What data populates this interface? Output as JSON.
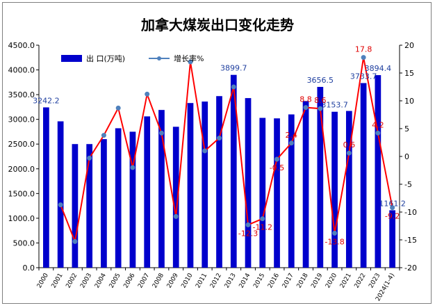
{
  "chart_data": {
    "type": "bar",
    "title": "加拿大煤炭出口变化走势",
    "categories": [
      "2000",
      "2001",
      "2002",
      "2003",
      "2004",
      "2005",
      "2006",
      "2007",
      "2008",
      "2009",
      "2010",
      "2011",
      "2012",
      "2013",
      "2014",
      "2015",
      "2016",
      "2017",
      "2018",
      "2019",
      "2020",
      "2021",
      "2022",
      "2023",
      "2024(1-4)"
    ],
    "series": [
      {
        "name": "出 口(万吨)",
        "kind": "bar",
        "axis": "left",
        "color": "#0000cc",
        "values": [
          3242.2,
          2960,
          2500,
          2500,
          2600,
          2820,
          2750,
          3060,
          3190,
          2850,
          3330,
          3360,
          3470,
          3899.7,
          3430,
          3030,
          3020,
          3100,
          3370,
          3656.5,
          3153.7,
          3170,
          3733.7,
          3894.4,
          1161.2
        ]
      },
      {
        "name": "增长率%",
        "kind": "line",
        "axis": "right",
        "color": "#ff0000",
        "marker_color": "#4f81bd",
        "values": [
          null,
          -8.7,
          -15.3,
          -0.3,
          3.8,
          8.7,
          -2,
          11.2,
          4.2,
          -10.8,
          17,
          1,
          3.3,
          12.5,
          -12.3,
          -11.2,
          -0.5,
          2.4,
          8.8,
          8.6,
          -13.8,
          0.6,
          17.8,
          4.2,
          -9.2
        ]
      }
    ],
    "y_left": {
      "min": 0,
      "max": 4500,
      "step": 500,
      "ticks": [
        "0.0",
        "500.0",
        "1000.0",
        "1500.0",
        "2000.0",
        "2500.0",
        "3000.0",
        "3500.0",
        "4000.0",
        "4500.0"
      ]
    },
    "y_right": {
      "min": -20,
      "max": 20,
      "step": 5,
      "ticks": [
        "-20",
        "-15",
        "-10",
        "-5",
        "0",
        "5",
        "10",
        "15",
        "20"
      ]
    },
    "bar_labels": [
      {
        "index": 0,
        "text": "3242.2"
      },
      {
        "index": 13,
        "text": "3899.7"
      },
      {
        "index": 19,
        "text": "3656.5"
      },
      {
        "index": 20,
        "text": "3153.7"
      },
      {
        "index": 22,
        "text": "3733.7"
      },
      {
        "index": 23,
        "text": "3894.4"
      },
      {
        "index": 24,
        "text": "1161.2"
      }
    ],
    "rate_labels": [
      {
        "index": 14,
        "text": "-12.3"
      },
      {
        "index": 15,
        "text": "-11.2"
      },
      {
        "index": 16,
        "text": "-0.5"
      },
      {
        "index": 17,
        "text": "2.4"
      },
      {
        "index": 18,
        "text": "8.8"
      },
      {
        "index": 19,
        "text": "8.6"
      },
      {
        "index": 20,
        "text": "-13.8"
      },
      {
        "index": 21,
        "text": "0.6"
      },
      {
        "index": 22,
        "text": "17.8"
      },
      {
        "index": 23,
        "text": "4.2"
      },
      {
        "index": 24,
        "text": "-9.2"
      }
    ],
    "legend_position": "top-left",
    "grid": false
  }
}
